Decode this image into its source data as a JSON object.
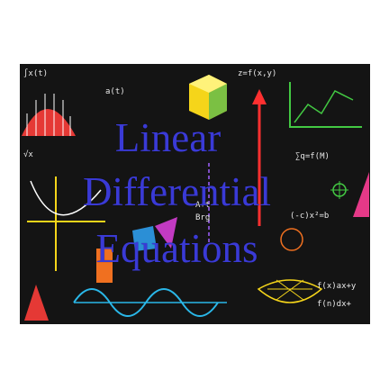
{
  "cover": {
    "title_lines": [
      "Linear",
      "Differential",
      "Equations"
    ],
    "title_color": "#3a3ad6",
    "background_color": "#141414"
  },
  "chalk_formulas": [
    "∫x(t)",
    "a(t)",
    "z=f(x,y)",
    "√x",
    "A+t",
    "Brg",
    "(-c)x²=b",
    "f(x)ax+y",
    "f(n)dx+",
    "∑q=f(M)"
  ]
}
